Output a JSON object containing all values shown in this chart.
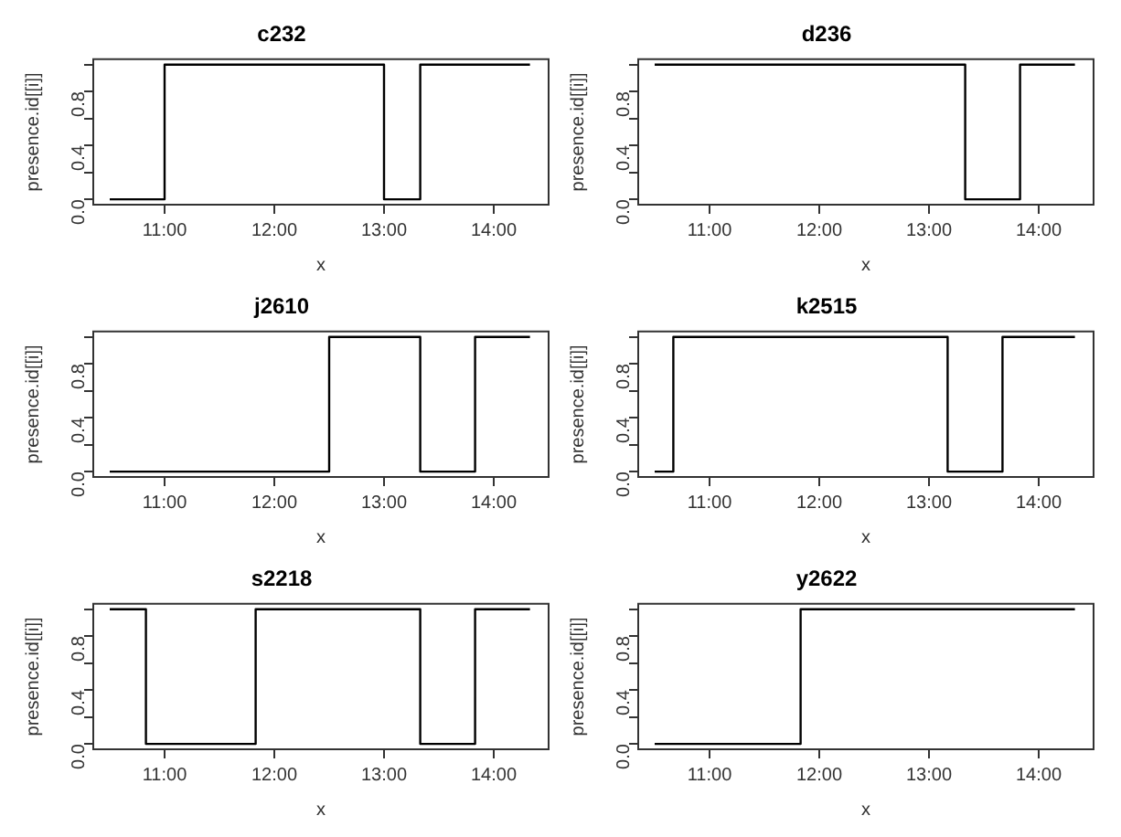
{
  "chart_data": [
    {
      "type": "step",
      "title": "c232",
      "xlabel": "x",
      "ylabel": "presence.id[[i]]",
      "x": [
        10.5,
        11,
        13,
        13.33,
        14.33
      ],
      "values": [
        0,
        1,
        0,
        1,
        1
      ],
      "color": "#000000",
      "xlim": [
        10.35,
        14.5
      ],
      "xticks": [
        {
          "value": 11,
          "label": "11:00"
        },
        {
          "value": 12,
          "label": "12:00"
        },
        {
          "value": 13,
          "label": "13:00"
        },
        {
          "value": 14,
          "label": "14:00"
        }
      ],
      "ylim": [
        -0.04,
        1.04
      ],
      "yticks": [
        {
          "value": 0,
          "label": "0.0"
        },
        {
          "value": 0.2,
          "label": null
        },
        {
          "value": 0.4,
          "label": "0.4"
        },
        {
          "value": 0.6,
          "label": null
        },
        {
          "value": 0.8,
          "label": "0.8"
        },
        {
          "value": 1,
          "label": null
        }
      ]
    },
    {
      "type": "step",
      "title": "d236",
      "xlabel": "x",
      "ylabel": "presence.id[[i]]",
      "x": [
        10.5,
        13.33,
        13.83,
        14.33
      ],
      "values": [
        1,
        0,
        1,
        1
      ],
      "color": "#000000",
      "xlim": [
        10.35,
        14.5
      ],
      "xticks": [
        {
          "value": 11,
          "label": "11:00"
        },
        {
          "value": 12,
          "label": "12:00"
        },
        {
          "value": 13,
          "label": "13:00"
        },
        {
          "value": 14,
          "label": "14:00"
        }
      ],
      "ylim": [
        -0.04,
        1.04
      ],
      "yticks": [
        {
          "value": 0,
          "label": "0.0"
        },
        {
          "value": 0.2,
          "label": null
        },
        {
          "value": 0.4,
          "label": "0.4"
        },
        {
          "value": 0.6,
          "label": null
        },
        {
          "value": 0.8,
          "label": "0.8"
        },
        {
          "value": 1,
          "label": null
        }
      ]
    },
    {
      "type": "step",
      "title": "j2610",
      "xlabel": "x",
      "ylabel": "presence.id[[i]]",
      "x": [
        10.5,
        12.5,
        13.33,
        13.83,
        14.33
      ],
      "values": [
        0,
        1,
        0,
        1,
        1
      ],
      "color": "#000000",
      "xlim": [
        10.35,
        14.5
      ],
      "xticks": [
        {
          "value": 11,
          "label": "11:00"
        },
        {
          "value": 12,
          "label": "12:00"
        },
        {
          "value": 13,
          "label": "13:00"
        },
        {
          "value": 14,
          "label": "14:00"
        }
      ],
      "ylim": [
        -0.04,
        1.04
      ],
      "yticks": [
        {
          "value": 0,
          "label": "0.0"
        },
        {
          "value": 0.2,
          "label": null
        },
        {
          "value": 0.4,
          "label": "0.4"
        },
        {
          "value": 0.6,
          "label": null
        },
        {
          "value": 0.8,
          "label": "0.8"
        },
        {
          "value": 1,
          "label": null
        }
      ]
    },
    {
      "type": "step",
      "title": "k2515",
      "xlabel": "x",
      "ylabel": "presence.id[[i]]",
      "x": [
        10.5,
        10.67,
        13.17,
        13.67,
        14.33
      ],
      "values": [
        0,
        1,
        0,
        1,
        1
      ],
      "color": "#000000",
      "xlim": [
        10.35,
        14.5
      ],
      "xticks": [
        {
          "value": 11,
          "label": "11:00"
        },
        {
          "value": 12,
          "label": "12:00"
        },
        {
          "value": 13,
          "label": "13:00"
        },
        {
          "value": 14,
          "label": "14:00"
        }
      ],
      "ylim": [
        -0.04,
        1.04
      ],
      "yticks": [
        {
          "value": 0,
          "label": "0.0"
        },
        {
          "value": 0.2,
          "label": null
        },
        {
          "value": 0.4,
          "label": "0.4"
        },
        {
          "value": 0.6,
          "label": null
        },
        {
          "value": 0.8,
          "label": "0.8"
        },
        {
          "value": 1,
          "label": null
        }
      ]
    },
    {
      "type": "step",
      "title": "s2218",
      "xlabel": "x",
      "ylabel": "presence.id[[i]]",
      "x": [
        10.5,
        10.83,
        11.83,
        13.33,
        13.83,
        14.33
      ],
      "values": [
        1,
        0,
        1,
        0,
        1,
        1
      ],
      "color": "#000000",
      "xlim": [
        10.35,
        14.5
      ],
      "xticks": [
        {
          "value": 11,
          "label": "11:00"
        },
        {
          "value": 12,
          "label": "12:00"
        },
        {
          "value": 13,
          "label": "13:00"
        },
        {
          "value": 14,
          "label": "14:00"
        }
      ],
      "ylim": [
        -0.04,
        1.04
      ],
      "yticks": [
        {
          "value": 0,
          "label": "0.0"
        },
        {
          "value": 0.2,
          "label": null
        },
        {
          "value": 0.4,
          "label": "0.4"
        },
        {
          "value": 0.6,
          "label": null
        },
        {
          "value": 0.8,
          "label": "0.8"
        },
        {
          "value": 1,
          "label": null
        }
      ]
    },
    {
      "type": "step",
      "title": "y2622",
      "xlabel": "x",
      "ylabel": "presence.id[[i]]",
      "x": [
        10.5,
        11.83,
        14.33
      ],
      "values": [
        0,
        1,
        1
      ],
      "color": "#000000",
      "xlim": [
        10.35,
        14.5
      ],
      "xticks": [
        {
          "value": 11,
          "label": "11:00"
        },
        {
          "value": 12,
          "label": "12:00"
        },
        {
          "value": 13,
          "label": "13:00"
        },
        {
          "value": 14,
          "label": "14:00"
        }
      ],
      "ylim": [
        -0.04,
        1.04
      ],
      "yticks": [
        {
          "value": 0,
          "label": "0.0"
        },
        {
          "value": 0.2,
          "label": null
        },
        {
          "value": 0.4,
          "label": "0.4"
        },
        {
          "value": 0.6,
          "label": null
        },
        {
          "value": 0.8,
          "label": "0.8"
        },
        {
          "value": 1,
          "label": null
        }
      ]
    }
  ]
}
